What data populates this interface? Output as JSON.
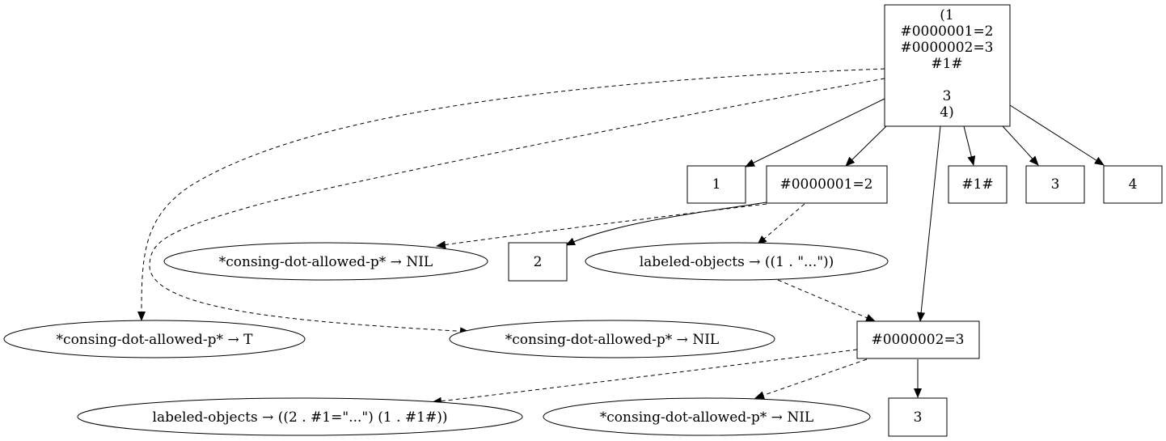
{
  "nodes": {
    "root": [
      "(1",
      "#0000001=2",
      "#0000002=3",
      "#1#",
      "",
      "3",
      "4)"
    ],
    "n_1": "1",
    "n_label1": "#0000001=2",
    "n_hash1": "#1#",
    "n_3a": "3",
    "n_4": "4",
    "e_dot_nil_1": "*consing-dot-allowed-p* → NIL",
    "n_2": "2",
    "e_labeled_1": "labeled-objects → ((1 . \"...\"))",
    "e_dot_t": "*consing-dot-allowed-p* → T",
    "e_dot_nil_2": "*consing-dot-allowed-p* → NIL",
    "n_label2": "#0000002=3",
    "e_labeled_2": "labeled-objects → ((2 . #1=\"...\") (1 . #1#))",
    "e_dot_nil_3": "*consing-dot-allowed-p* → NIL",
    "n_3b": "3"
  }
}
